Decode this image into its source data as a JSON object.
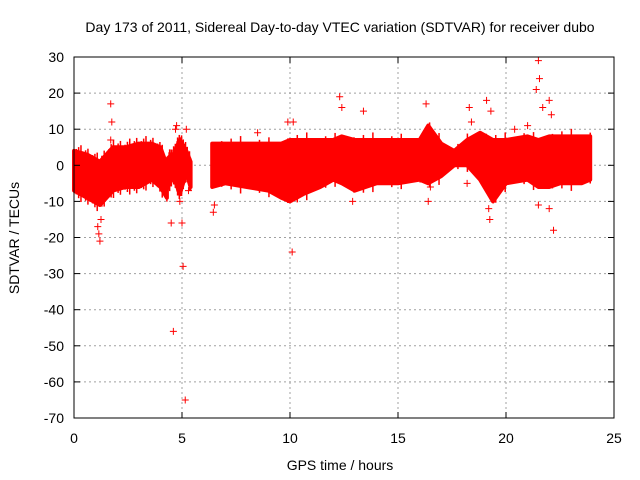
{
  "chart_data": {
    "type": "scatter",
    "title": "Day 173 of 2011, Sidereal Day-to-day VTEC variation (SDTVAR) for receiver dubo",
    "xlabel": "GPS time / hours",
    "ylabel": "SDTVAR / TECUs",
    "xlim": [
      0,
      25
    ],
    "ylim": [
      -70,
      30
    ],
    "xticks": [
      0,
      5,
      10,
      15,
      20,
      25
    ],
    "yticks": [
      -70,
      -60,
      -50,
      -40,
      -30,
      -20,
      -10,
      0,
      10,
      20,
      30
    ],
    "grid": true,
    "marker": "+",
    "color": "#ff0000",
    "bands": [
      {
        "x": [
          0.0,
          0.6,
          1.2,
          1.8,
          2.4,
          3.0,
          3.6,
          4.0,
          4.3
        ],
        "lower": [
          -7,
          -9,
          -11,
          -7,
          -6,
          -6,
          -4,
          -6,
          -9
        ],
        "upper": [
          4,
          3,
          1,
          5,
          5,
          6,
          6,
          5,
          0
        ]
      },
      {
        "x": [
          4.35,
          4.6,
          4.9,
          5.2,
          5.4
        ],
        "lower": [
          -6,
          -3,
          -8,
          -2,
          -6
        ],
        "upper": [
          2,
          3,
          7,
          4,
          1
        ]
      },
      {
        "x": [
          6.4,
          7.0,
          8.0,
          9.0,
          9.6,
          10.0,
          10.6,
          11.4,
          12.0,
          12.4,
          13.0,
          14.0,
          15.0,
          16.0,
          16.4,
          17.0,
          17.6,
          18.2,
          18.8,
          19.4,
          20.0,
          21.0,
          21.5,
          22.0,
          22.5,
          23.0,
          23.5,
          23.9
        ],
        "lower": [
          -6,
          -5,
          -6,
          -7,
          -9,
          -10,
          -8,
          -6,
          -4,
          -5,
          -7,
          -5,
          -5,
          -4,
          -5,
          -3,
          0,
          0,
          -4,
          -10,
          -5,
          -4,
          -6,
          -6,
          -5,
          -5,
          -5,
          -4
        ],
        "upper": [
          6,
          6,
          6,
          6,
          6,
          7,
          7,
          7,
          7,
          8,
          7,
          7,
          7,
          7,
          11,
          6,
          4,
          7,
          9,
          7,
          7,
          8,
          7,
          8,
          8,
          8,
          8,
          8
        ]
      }
    ],
    "points": [
      {
        "x": 1.7,
        "y": 17
      },
      {
        "x": 1.75,
        "y": 12
      },
      {
        "x": 1.7,
        "y": 7
      },
      {
        "x": 1.1,
        "y": -17
      },
      {
        "x": 1.15,
        "y": -19
      },
      {
        "x": 1.2,
        "y": -21
      },
      {
        "x": 1.25,
        "y": -15
      },
      {
        "x": 4.5,
        "y": -16
      },
      {
        "x": 4.6,
        "y": -46
      },
      {
        "x": 4.7,
        "y": 10
      },
      {
        "x": 4.75,
        "y": 11
      },
      {
        "x": 4.9,
        "y": -10
      },
      {
        "x": 5.0,
        "y": -16
      },
      {
        "x": 5.05,
        "y": -28
      },
      {
        "x": 5.15,
        "y": -65
      },
      {
        "x": 5.2,
        "y": 10
      },
      {
        "x": 5.3,
        "y": -7
      },
      {
        "x": 6.45,
        "y": -13
      },
      {
        "x": 6.5,
        "y": -11
      },
      {
        "x": 8.5,
        "y": 9
      },
      {
        "x": 9.9,
        "y": 12
      },
      {
        "x": 10.1,
        "y": -24
      },
      {
        "x": 10.15,
        "y": 12
      },
      {
        "x": 12.3,
        "y": 19
      },
      {
        "x": 12.4,
        "y": 16
      },
      {
        "x": 12.9,
        "y": -10
      },
      {
        "x": 13.4,
        "y": 15
      },
      {
        "x": 16.3,
        "y": 17
      },
      {
        "x": 16.4,
        "y": -10
      },
      {
        "x": 16.5,
        "y": -6
      },
      {
        "x": 18.3,
        "y": 16
      },
      {
        "x": 18.4,
        "y": 12
      },
      {
        "x": 18.2,
        "y": -5
      },
      {
        "x": 19.1,
        "y": 18
      },
      {
        "x": 19.2,
        "y": -12
      },
      {
        "x": 19.25,
        "y": -15
      },
      {
        "x": 19.3,
        "y": 15
      },
      {
        "x": 20.4,
        "y": 10
      },
      {
        "x": 21.0,
        "y": 11
      },
      {
        "x": 21.4,
        "y": 21
      },
      {
        "x": 21.5,
        "y": 29
      },
      {
        "x": 21.55,
        "y": 24
      },
      {
        "x": 21.5,
        "y": -11
      },
      {
        "x": 21.7,
        "y": 16
      },
      {
        "x": 22.0,
        "y": 18
      },
      {
        "x": 22.1,
        "y": 14
      },
      {
        "x": 22.2,
        "y": -18
      },
      {
        "x": 22.0,
        "y": -12
      }
    ]
  }
}
